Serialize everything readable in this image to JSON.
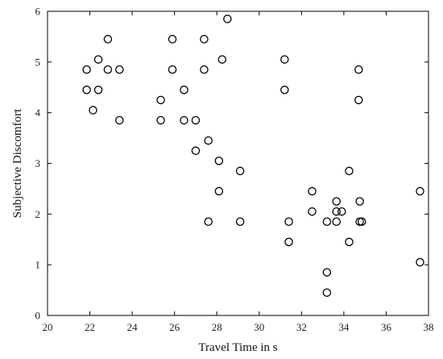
{
  "chart_data": {
    "type": "scatter",
    "title": "",
    "xlabel": "Travel Time in s",
    "ylabel": "Subjective Discomfort",
    "xlim": [
      20,
      38
    ],
    "ylim": [
      0,
      6
    ],
    "xticks": [
      "20",
      "22",
      "24",
      "26",
      "28",
      "30",
      "32",
      "34",
      "36",
      "38"
    ],
    "yticks": [
      "0",
      "1",
      "2",
      "3",
      "4",
      "5",
      "6"
    ],
    "grid": false,
    "legend": "none",
    "marker": "open-circle",
    "colors": {
      "marker": "#000000",
      "axis": "#000000",
      "background": "#ffffff"
    },
    "series": [
      {
        "points": [
          [
            21.85,
            4.85
          ],
          [
            21.85,
            4.45
          ],
          [
            22.15,
            4.05
          ],
          [
            22.4,
            5.05
          ],
          [
            22.4,
            4.45
          ],
          [
            22.85,
            5.45
          ],
          [
            22.85,
            4.85
          ],
          [
            23.4,
            4.85
          ],
          [
            23.4,
            3.85
          ],
          [
            25.35,
            4.25
          ],
          [
            25.35,
            3.85
          ],
          [
            25.9,
            5.45
          ],
          [
            25.9,
            4.85
          ],
          [
            26.45,
            4.45
          ],
          [
            26.45,
            3.85
          ],
          [
            27.0,
            3.85
          ],
          [
            27.0,
            3.25
          ],
          [
            27.4,
            5.45
          ],
          [
            27.4,
            4.85
          ],
          [
            27.6,
            3.45
          ],
          [
            27.6,
            1.85
          ],
          [
            28.1,
            3.05
          ],
          [
            28.1,
            2.45
          ],
          [
            28.25,
            5.05
          ],
          [
            28.5,
            5.85
          ],
          [
            29.1,
            2.85
          ],
          [
            29.1,
            1.85
          ],
          [
            31.2,
            5.05
          ],
          [
            31.2,
            4.45
          ],
          [
            31.4,
            1.85
          ],
          [
            31.4,
            1.45
          ],
          [
            32.5,
            2.45
          ],
          [
            32.5,
            2.05
          ],
          [
            33.2,
            1.85
          ],
          [
            33.2,
            0.85
          ],
          [
            33.2,
            0.45
          ],
          [
            33.65,
            2.25
          ],
          [
            33.65,
            2.05
          ],
          [
            33.65,
            1.85
          ],
          [
            33.9,
            2.05
          ],
          [
            34.25,
            2.85
          ],
          [
            34.25,
            1.45
          ],
          [
            34.7,
            4.85
          ],
          [
            34.7,
            4.25
          ],
          [
            34.75,
            2.25
          ],
          [
            34.75,
            1.85
          ],
          [
            34.85,
            1.85
          ],
          [
            37.6,
            2.45
          ],
          [
            37.6,
            1.05
          ]
        ]
      }
    ]
  }
}
